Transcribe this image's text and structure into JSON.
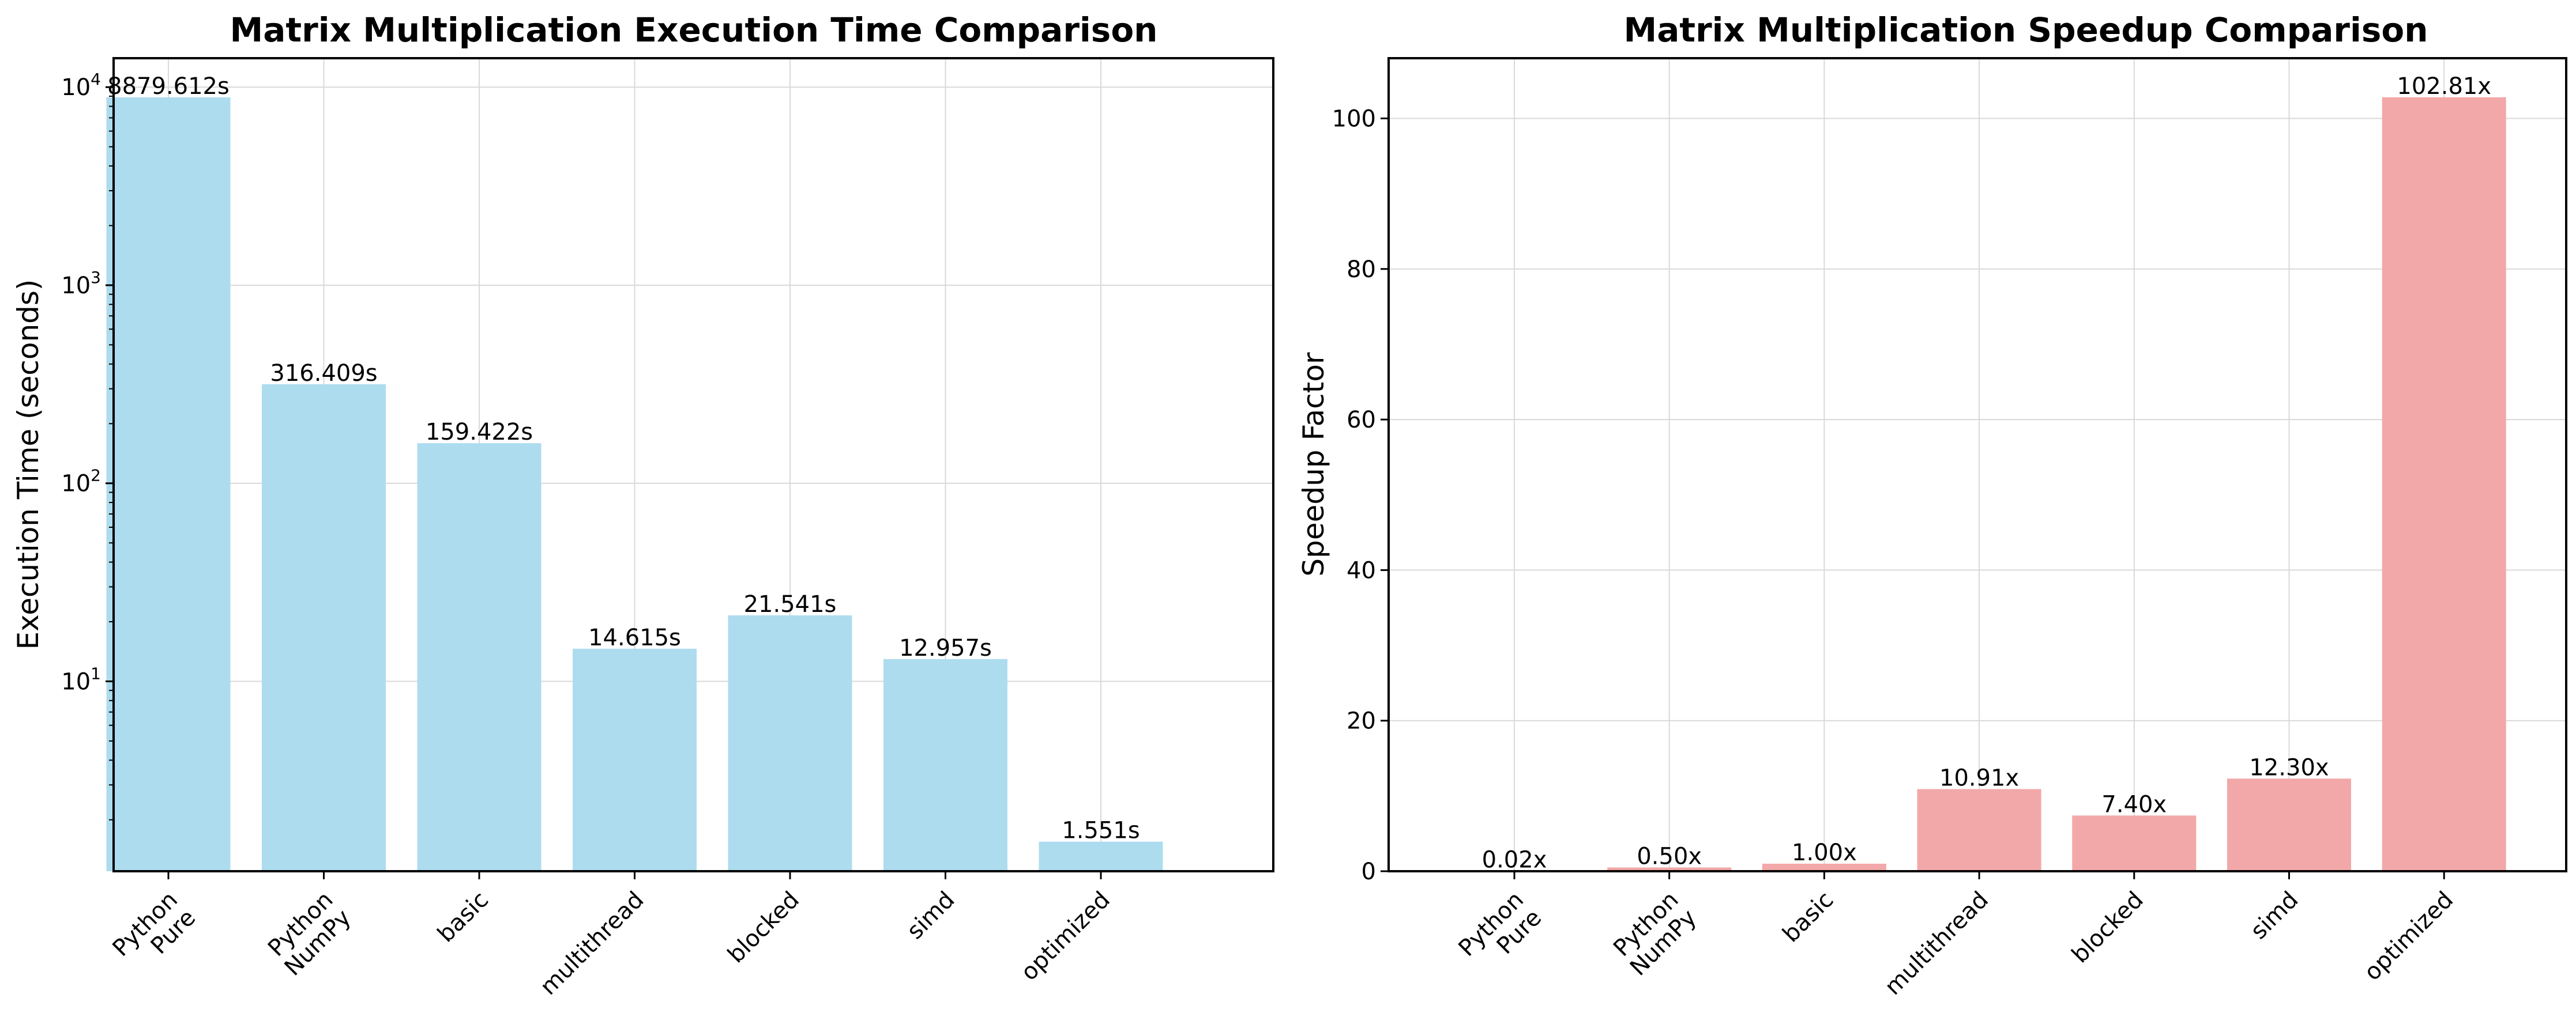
{
  "chart_data": [
    {
      "type": "bar",
      "title": "Matrix Multiplication Execution Time Comparison",
      "xlabel": "",
      "ylabel": "Execution Time (seconds)",
      "yscale": "log",
      "ylim": [
        1.1,
        14000
      ],
      "grid": true,
      "categories": [
        [
          "Python",
          "Pure"
        ],
        [
          "Python",
          "NumPy"
        ],
        [
          "basic"
        ],
        [
          "multithread"
        ],
        [
          "blocked"
        ],
        [
          "simd"
        ],
        [
          "optimized"
        ]
      ],
      "values": [
        8879.612,
        316.409,
        159.422,
        14.615,
        21.541,
        12.957,
        1.551
      ],
      "value_labels": [
        "8879.612s",
        "316.409s",
        "159.422s",
        "14.615s",
        "21.541s",
        "12.957s",
        "1.551s"
      ],
      "yticks": [
        {
          "value": 10,
          "base": "10",
          "exp": "1"
        },
        {
          "value": 100,
          "base": "10",
          "exp": "2"
        },
        {
          "value": 1000,
          "base": "10",
          "exp": "3"
        },
        {
          "value": 10000,
          "base": "10",
          "exp": "4"
        }
      ],
      "bar_color": "#ADDCEE"
    },
    {
      "type": "bar",
      "title": "Matrix Multiplication Speedup Comparison",
      "xlabel": "",
      "ylabel": "Speedup Factor",
      "yscale": "linear",
      "ylim": [
        0,
        108
      ],
      "grid": true,
      "categories": [
        [
          "Python",
          "Pure"
        ],
        [
          "Python",
          "NumPy"
        ],
        [
          "basic"
        ],
        [
          "multithread"
        ],
        [
          "blocked"
        ],
        [
          "simd"
        ],
        [
          "optimized"
        ]
      ],
      "values": [
        0.02,
        0.5,
        1.0,
        10.91,
        7.4,
        12.3,
        102.81
      ],
      "value_labels": [
        "0.02x",
        "0.50x",
        "1.00x",
        "10.91x",
        "7.40x",
        "12.30x",
        "102.81x"
      ],
      "yticks": [
        {
          "value": 0,
          "label": "0"
        },
        {
          "value": 20,
          "label": "20"
        },
        {
          "value": 40,
          "label": "40"
        },
        {
          "value": 60,
          "label": "60"
        },
        {
          "value": 80,
          "label": "80"
        },
        {
          "value": 100,
          "label": "100"
        }
      ],
      "bar_color": "#F2A8A8"
    }
  ]
}
